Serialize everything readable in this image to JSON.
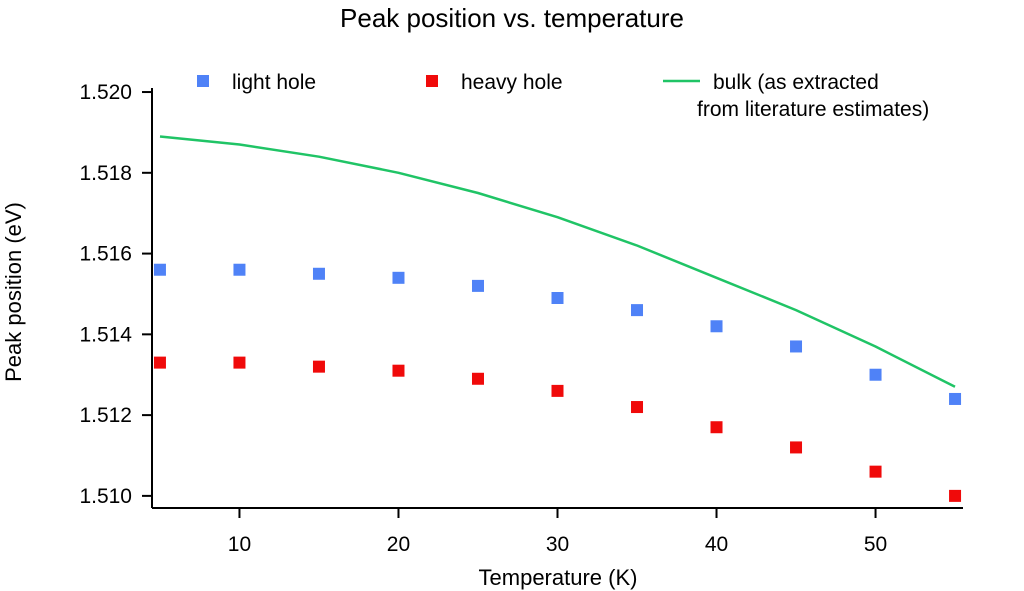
{
  "chart_data": {
    "type": "scatter",
    "title": "Peak position vs. temperature",
    "xlabel": "Temperature (K)",
    "ylabel": "Peak position (eV)",
    "xlim": [
      4.5,
      55.5
    ],
    "ylim": [
      1.5097,
      1.5201
    ],
    "x_ticks": [
      10,
      20,
      30,
      40,
      50
    ],
    "x_tick_labels": [
      "10",
      "20",
      "30",
      "40",
      "50"
    ],
    "y_ticks": [
      1.51,
      1.512,
      1.514,
      1.516,
      1.518,
      1.52
    ],
    "y_tick_labels": [
      "1.510",
      "1.512",
      "1.514",
      "1.516",
      "1.518",
      "1.520"
    ],
    "grid": false,
    "legend_position": "top",
    "series": [
      {
        "name": "light hole",
        "kind": "scatter",
        "marker": "square",
        "color": "#4F82F7",
        "x": [
          5,
          10,
          15,
          20,
          25,
          30,
          35,
          40,
          45,
          50,
          55
        ],
        "y": [
          1.5156,
          1.5156,
          1.5155,
          1.5154,
          1.5152,
          1.5149,
          1.5146,
          1.5142,
          1.5137,
          1.513,
          1.5124
        ]
      },
      {
        "name": "heavy hole",
        "kind": "scatter",
        "marker": "square",
        "color": "#F00A0A",
        "x": [
          5,
          10,
          15,
          20,
          25,
          30,
          35,
          40,
          45,
          50,
          55
        ],
        "y": [
          1.5133,
          1.5133,
          1.5132,
          1.5131,
          1.5129,
          1.5126,
          1.5122,
          1.5117,
          1.5112,
          1.5106,
          1.51
        ]
      },
      {
        "name_lines": [
          "bulk (as extracted",
          "from literature estimates)"
        ],
        "kind": "line",
        "color": "#20C466",
        "x": [
          5,
          10,
          15,
          20,
          25,
          30,
          35,
          40,
          45,
          50,
          55
        ],
        "y": [
          1.5189,
          1.5187,
          1.5184,
          1.518,
          1.5175,
          1.5169,
          1.5162,
          1.5154,
          1.5146,
          1.5137,
          1.5127
        ]
      }
    ]
  }
}
